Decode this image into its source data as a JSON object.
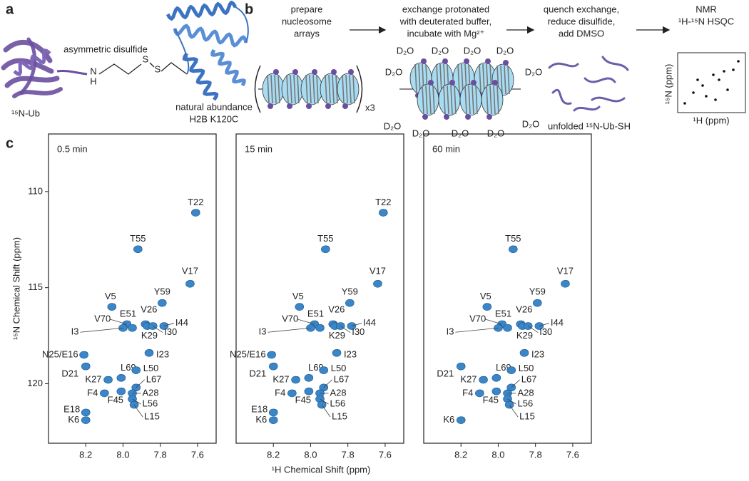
{
  "panel_labels": [
    "a",
    "b",
    "c"
  ],
  "panel_a": {
    "linker_label": "asymmetric disulfide",
    "atoms": [
      "N",
      "H",
      "S",
      "S"
    ],
    "ub_label": "¹⁵N-Ub",
    "h2b_label": [
      "natural abundance",
      "H2B K120C"
    ]
  },
  "panel_b": {
    "steps": [
      [
        "prepare",
        "nucleosome",
        "arrays"
      ],
      [
        "exchange protonated",
        "with deuterated buffer,",
        "incubate with Mg²⁺"
      ],
      [
        "quench exchange,",
        "reduce disulfide,",
        "add DMSO"
      ],
      [
        "NMR",
        "¹H-¹⁵N HSQC"
      ]
    ],
    "repeat_label": "x3",
    "d2o_labels": [
      "D₂O",
      "D₂O",
      "D₂O",
      "D₂O",
      "D₂O",
      "D₂O",
      "D₂O",
      "D₂O",
      "D₂O",
      "D₂O",
      "D₂O"
    ],
    "unfolded_label": "unfolded ¹⁵N-Ub-SH",
    "inset_ylabel": "¹⁵N (ppm)",
    "inset_xlabel": "¹H (ppm)"
  },
  "chart_data": [
    {
      "type": "scatter",
      "title": "0.5 min",
      "ylabel": "¹⁵N Chemical Shift (ppm)",
      "color": "#3a86c8",
      "peak_labels": [
        "T22",
        "T55",
        "V17",
        "V5",
        "Y59",
        "V70",
        "E51",
        "V26",
        "I44",
        "I3",
        "K29",
        "I30",
        "I23",
        "N25/E16",
        "D21",
        "L69",
        "L50",
        "K27",
        "L67",
        "A28",
        "F4",
        "F45",
        "E18",
        "L56",
        "L15",
        "K6"
      ],
      "x": [
        7.61,
        7.92,
        7.64,
        8.06,
        7.79,
        7.98,
        7.95,
        7.88,
        7.78,
        8.0,
        7.87,
        7.84,
        7.86,
        8.21,
        8.2,
        8.01,
        7.93,
        8.08,
        7.93,
        7.95,
        8.1,
        8.01,
        8.2,
        7.95,
        7.94,
        8.2
      ],
      "y": [
        111.1,
        113.0,
        114.8,
        116.0,
        115.8,
        116.9,
        117.1,
        116.9,
        117.0,
        117.1,
        117.0,
        117.0,
        118.4,
        118.5,
        119.1,
        119.7,
        119.3,
        119.8,
        120.2,
        120.5,
        120.5,
        120.4,
        121.5,
        120.8,
        121.1,
        121.9
      ],
      "label_colors": [
        "#e8262a",
        "#e8262a",
        "#222222",
        "#222222",
        "#e8262a",
        "#222222",
        "#222222",
        "#222222",
        "#222222",
        "#222222",
        "#222222",
        "#222222",
        "#222222",
        "#e8262a",
        "#e8262a",
        "#222222",
        "#e8262a",
        "#222222",
        "#222222",
        "#222222",
        "#222222",
        "#e8262a",
        "#e8262a",
        "#222222",
        "#222222",
        "#222222"
      ],
      "xlim": [
        8.4,
        7.5
      ],
      "ylim": [
        107,
        123.1
      ],
      "xticks": [
        8.2,
        {
          "value": 8,
          "label": "8.0"
        },
        7.8,
        7.6
      ],
      "yticks": [
        110,
        115,
        120
      ]
    },
    {
      "type": "scatter",
      "title": "15 min",
      "xlabel": "¹H Chemical Shift (ppm)",
      "color": "#3a86c8",
      "peak_labels": [
        "T22",
        "T55",
        "V17",
        "V5",
        "Y59",
        "V70",
        "E51",
        "V26",
        "I44",
        "I3",
        "K29",
        "I30",
        "I23",
        "N25/E16",
        "D21",
        "L69",
        "L50",
        "K27",
        "L67",
        "A28",
        "F4",
        "F45",
        "E18",
        "L56",
        "L15",
        "K6"
      ],
      "x": [
        7.61,
        7.92,
        7.64,
        8.06,
        7.79,
        7.98,
        7.95,
        7.88,
        7.78,
        8.0,
        7.87,
        7.84,
        7.86,
        8.21,
        8.2,
        8.01,
        7.93,
        8.08,
        7.93,
        7.95,
        8.1,
        8.01,
        8.2,
        7.95,
        7.94,
        8.2
      ],
      "y": [
        111.1,
        113.0,
        114.8,
        116.0,
        115.8,
        116.9,
        117.1,
        116.9,
        117.0,
        117.1,
        117.0,
        117.0,
        118.4,
        118.5,
        119.1,
        119.7,
        119.3,
        119.8,
        120.2,
        120.5,
        120.5,
        120.4,
        121.5,
        120.8,
        121.1,
        121.9
      ],
      "label_colors": [
        "#e8262a",
        "#e8262a",
        "#222222",
        "#222222",
        "#e8262a",
        "#222222",
        "#222222",
        "#222222",
        "#222222",
        "#222222",
        "#222222",
        "#222222",
        "#222222",
        "#e8262a",
        "#e8262a",
        "#222222",
        "#e8262a",
        "#222222",
        "#222222",
        "#222222",
        "#222222",
        "#e8262a",
        "#e8262a",
        "#222222",
        "#222222",
        "#222222"
      ],
      "xlim": [
        8.4,
        7.5
      ],
      "ylim": [
        107,
        123.1
      ],
      "xticks": [
        8.2,
        {
          "value": 8,
          "label": "8.0"
        },
        7.8,
        7.6
      ]
    },
    {
      "type": "scatter",
      "title": "60 min",
      "color": "#3a86c8",
      "peak_labels": [
        "T55",
        "V17",
        "V5",
        "Y59",
        "V70",
        "E51",
        "V26",
        "I44",
        "I3",
        "K29",
        "I30",
        "I23",
        "D21",
        "L69",
        "L50",
        "K27",
        "L67",
        "A28",
        "F4",
        "F45",
        "L56",
        "L15",
        "K6"
      ],
      "x": [
        7.92,
        7.64,
        8.06,
        7.79,
        7.98,
        7.95,
        7.88,
        7.78,
        8.0,
        7.87,
        7.84,
        7.86,
        8.2,
        8.01,
        7.93,
        8.08,
        7.93,
        7.95,
        8.1,
        8.01,
        7.95,
        7.94,
        8.2
      ],
      "y": [
        113.0,
        114.8,
        116.0,
        115.8,
        116.9,
        117.1,
        116.9,
        117.0,
        117.1,
        117.0,
        117.0,
        118.4,
        119.1,
        119.7,
        119.3,
        119.8,
        120.2,
        120.5,
        120.5,
        120.4,
        120.8,
        121.1,
        121.9
      ],
      "label_colors": [
        "#e8262a",
        "#222222",
        "#222222",
        "#e8262a",
        "#222222",
        "#222222",
        "#222222",
        "#222222",
        "#222222",
        "#222222",
        "#222222",
        "#222222",
        "#e8262a",
        "#222222",
        "#e8262a",
        "#222222",
        "#222222",
        "#222222",
        "#222222",
        "#e8262a",
        "#222222",
        "#222222",
        "#222222"
      ],
      "xlim": [
        8.4,
        7.5
      ],
      "ylim": [
        107,
        123.1
      ],
      "xticks": [
        8.2,
        {
          "value": 8,
          "label": "8.0"
        },
        7.8,
        7.6
      ]
    }
  ]
}
